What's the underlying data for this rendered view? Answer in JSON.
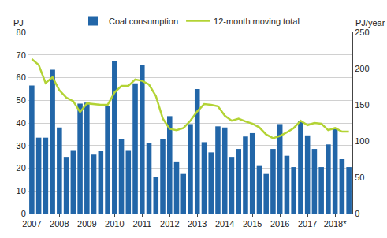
{
  "chart_data": {
    "type": "bar",
    "y_label": "PJ",
    "y2_label": "PJ/year",
    "categories": [
      "2007",
      null,
      null,
      null,
      "2008",
      null,
      null,
      null,
      "2009",
      null,
      null,
      null,
      "2010",
      null,
      null,
      null,
      "2011",
      null,
      null,
      null,
      "2012",
      null,
      null,
      null,
      "2013",
      null,
      null,
      null,
      "2014",
      null,
      null,
      null,
      "2015",
      null,
      null,
      null,
      "2016",
      null,
      null,
      null,
      "2017",
      null,
      null,
      null,
      "2018*",
      null,
      null
    ],
    "series": [
      {
        "name": "Coal consumption",
        "type": "bar",
        "color": "#2266a8",
        "values": [
          56.5,
          33.5,
          33.5,
          63.5,
          38,
          25,
          28,
          48.5,
          49,
          26,
          27.5,
          47.5,
          67.5,
          33,
          28,
          57.5,
          65.5,
          31,
          16,
          33,
          43,
          23,
          17.5,
          39.5,
          55,
          31.5,
          27,
          38.5,
          38,
          25,
          28.5,
          34,
          35.5,
          21,
          17.5,
          28.5,
          39.5,
          25.5,
          20.5,
          41,
          34.5,
          28.5,
          20.5,
          30.5,
          37.5,
          24,
          20.5
        ]
      },
      {
        "name": "12-month moving total",
        "type": "line",
        "axis": "y2",
        "color": "#b3d335",
        "values": [
          213,
          205,
          180,
          188,
          170,
          160,
          155,
          140,
          152,
          151,
          150,
          150,
          167,
          176,
          176,
          185,
          183,
          178,
          162,
          131,
          117,
          115,
          118,
          128,
          141,
          151,
          150,
          148,
          135,
          128,
          131,
          127,
          124,
          119,
          109,
          104,
          107,
          112,
          118,
          128,
          122,
          125,
          124,
          115,
          118,
          113,
          113
        ]
      }
    ],
    "ylim": [
      0,
      80
    ],
    "yticks": [
      0,
      10,
      20,
      30,
      40,
      50,
      60,
      70,
      80
    ],
    "y2lim": [
      0,
      250
    ],
    "y2ticks": [
      0,
      50,
      100,
      150,
      200,
      250
    ],
    "grid": true,
    "legend": "top"
  }
}
